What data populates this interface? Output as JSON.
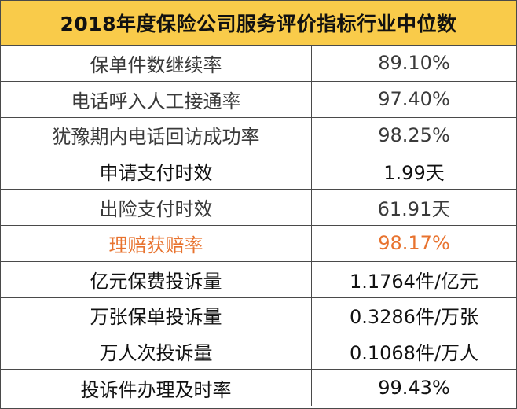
{
  "title": "2018年度保险公司服务评价指标行业中位数",
  "colors": {
    "header_bg": "#f9cb4a",
    "highlight": "#e8732f",
    "border": "#4a4a4a"
  },
  "rows": [
    {
      "name": "保单件数继续率",
      "value": "89.10%"
    },
    {
      "name": "电话呼入人工接通率",
      "value": "97.40%"
    },
    {
      "name": "犹豫期内电话回访成功率",
      "value": "98.25%"
    },
    {
      "name": "申请支付时效",
      "value": "1.99天"
    },
    {
      "name": "出险支付时效",
      "value": "61.91天"
    },
    {
      "name": "理赔获赔率",
      "value": "98.17%"
    },
    {
      "name": "亿元保费投诉量",
      "value": "1.1764件/亿元"
    },
    {
      "name": "万张保单投诉量",
      "value": "0.3286件/万张"
    },
    {
      "name": "万人次投诉量",
      "value": "0.1068件/万人"
    },
    {
      "name": "投诉件办理及时率",
      "value": "99.43%"
    }
  ]
}
